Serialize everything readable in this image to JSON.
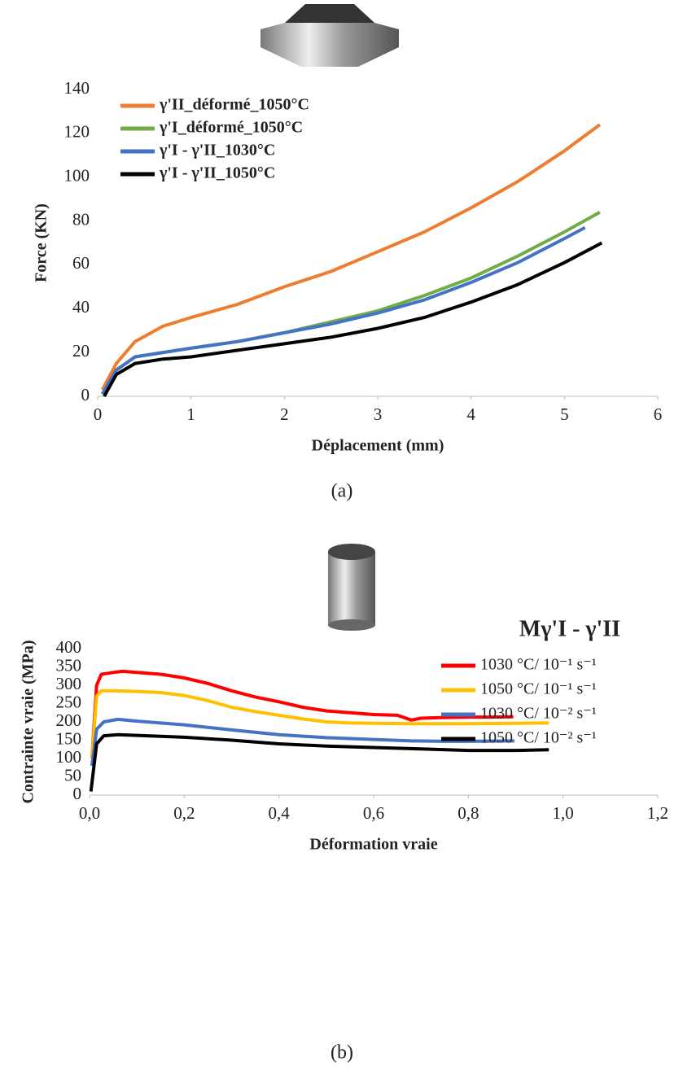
{
  "chart_data": [
    {
      "type": "line",
      "x_label": "Déplacement (mm)",
      "y_label": "Force (KN)",
      "caption": "(a)",
      "xlim": [
        0,
        6
      ],
      "xticks": [
        0,
        1,
        2,
        3,
        4,
        5,
        6
      ],
      "ylim": [
        0,
        140
      ],
      "yticks": [
        0,
        20,
        40,
        60,
        80,
        100,
        120,
        140
      ],
      "grid": false,
      "legend": "top-left",
      "series": [
        {
          "name": "γ'II_déformé_1050°C",
          "color": "#ed7d31",
          "x": [
            0.05,
            0.2,
            0.4,
            0.7,
            1,
            1.5,
            2,
            2.5,
            3,
            3.5,
            4,
            4.5,
            5,
            5.38
          ],
          "values": [
            3,
            15,
            25,
            32,
            36,
            42,
            50,
            57,
            66,
            75,
            86,
            98,
            112,
            124
          ]
        },
        {
          "name": "γ'I_déformé_1050°C",
          "color": "#70ad47",
          "x": [
            0.05,
            0.2,
            0.4,
            0.7,
            1,
            1.5,
            2,
            2.5,
            3,
            3.5,
            4,
            4.5,
            5,
            5.38
          ],
          "values": [
            1,
            12,
            18,
            20,
            22,
            25,
            29,
            34,
            39,
            46,
            54,
            64,
            75,
            84
          ]
        },
        {
          "name": "γ'I - γ'II_1030°C",
          "color": "#4472c4",
          "x": [
            0.05,
            0.2,
            0.4,
            0.7,
            1,
            1.5,
            2,
            2.5,
            3,
            3.5,
            4,
            4.5,
            5,
            5.22
          ],
          "values": [
            1,
            12,
            18,
            20,
            22,
            25,
            29,
            33,
            38,
            44,
            52,
            61,
            72,
            77
          ]
        },
        {
          "name": "γ'I - γ'II_1050°C",
          "color": "#000000",
          "x": [
            0.07,
            0.2,
            0.4,
            0.7,
            1,
            1.5,
            2,
            2.5,
            3,
            3.5,
            4,
            4.5,
            5,
            5.4
          ],
          "values": [
            0,
            10,
            15,
            17,
            18,
            21,
            24,
            27,
            31,
            36,
            43,
            51,
            61,
            70
          ]
        }
      ]
    },
    {
      "type": "line",
      "x_label": "Déformation vraie",
      "y_label": "Contrainte vraie (MPa)",
      "caption": "(b)",
      "legend_title": "Mγ'I - γ'II",
      "xlim": [
        0,
        1.2
      ],
      "xticks": [
        {
          "value": 0,
          "label": "0,0"
        },
        {
          "value": 0.2,
          "label": "0,2"
        },
        {
          "value": 0.4,
          "label": "0,4"
        },
        {
          "value": 0.6,
          "label": "0,6"
        },
        {
          "value": 0.8,
          "label": "0,8"
        },
        {
          "value": 1,
          "label": "1,0"
        },
        {
          "value": 1.2,
          "label": "1,2"
        }
      ],
      "ylim": [
        0,
        400
      ],
      "yticks": [
        0,
        50,
        100,
        150,
        200,
        250,
        300,
        350,
        400
      ],
      "grid": false,
      "legend": "top-right",
      "series": [
        {
          "name": "1030 °C/ 10⁻¹ s⁻¹",
          "color": "#ff0000",
          "x": [
            0.005,
            0.015,
            0.025,
            0.05,
            0.07,
            0.1,
            0.15,
            0.2,
            0.25,
            0.3,
            0.35,
            0.4,
            0.45,
            0.5,
            0.55,
            0.6,
            0.65,
            0.68,
            0.7,
            0.75,
            0.8,
            0.85,
            0.895
          ],
          "values": [
            100,
            300,
            330,
            335,
            338,
            335,
            330,
            320,
            305,
            285,
            268,
            255,
            240,
            230,
            225,
            220,
            218,
            205,
            210,
            212,
            213,
            213,
            214
          ]
        },
        {
          "name": "1050 °C/ 10⁻¹ s⁻¹",
          "color": "#ffc000",
          "x": [
            0.005,
            0.015,
            0.025,
            0.05,
            0.1,
            0.15,
            0.2,
            0.25,
            0.3,
            0.35,
            0.4,
            0.45,
            0.5,
            0.55,
            0.6,
            0.7,
            0.8,
            0.9,
            0.97
          ],
          "values": [
            100,
            270,
            285,
            285,
            283,
            280,
            272,
            258,
            240,
            228,
            218,
            208,
            200,
            197,
            196,
            195,
            195,
            196,
            197
          ]
        },
        {
          "name": "1030 °C/ 10⁻² s⁻¹",
          "color": "#4472c4",
          "x": [
            0.005,
            0.015,
            0.03,
            0.06,
            0.1,
            0.2,
            0.3,
            0.4,
            0.5,
            0.6,
            0.68,
            0.75,
            0.8,
            0.897
          ],
          "values": [
            80,
            180,
            200,
            207,
            202,
            192,
            178,
            165,
            157,
            152,
            148,
            147,
            147,
            148
          ]
        },
        {
          "name": "1050 °C/ 10⁻² s⁻¹",
          "color": "#000000",
          "x": [
            0.003,
            0.015,
            0.03,
            0.06,
            0.1,
            0.2,
            0.3,
            0.4,
            0.5,
            0.6,
            0.7,
            0.8,
            0.9,
            0.97
          ],
          "values": [
            10,
            140,
            162,
            165,
            163,
            158,
            150,
            140,
            134,
            130,
            126,
            122,
            122,
            124
          ]
        }
      ]
    }
  ]
}
